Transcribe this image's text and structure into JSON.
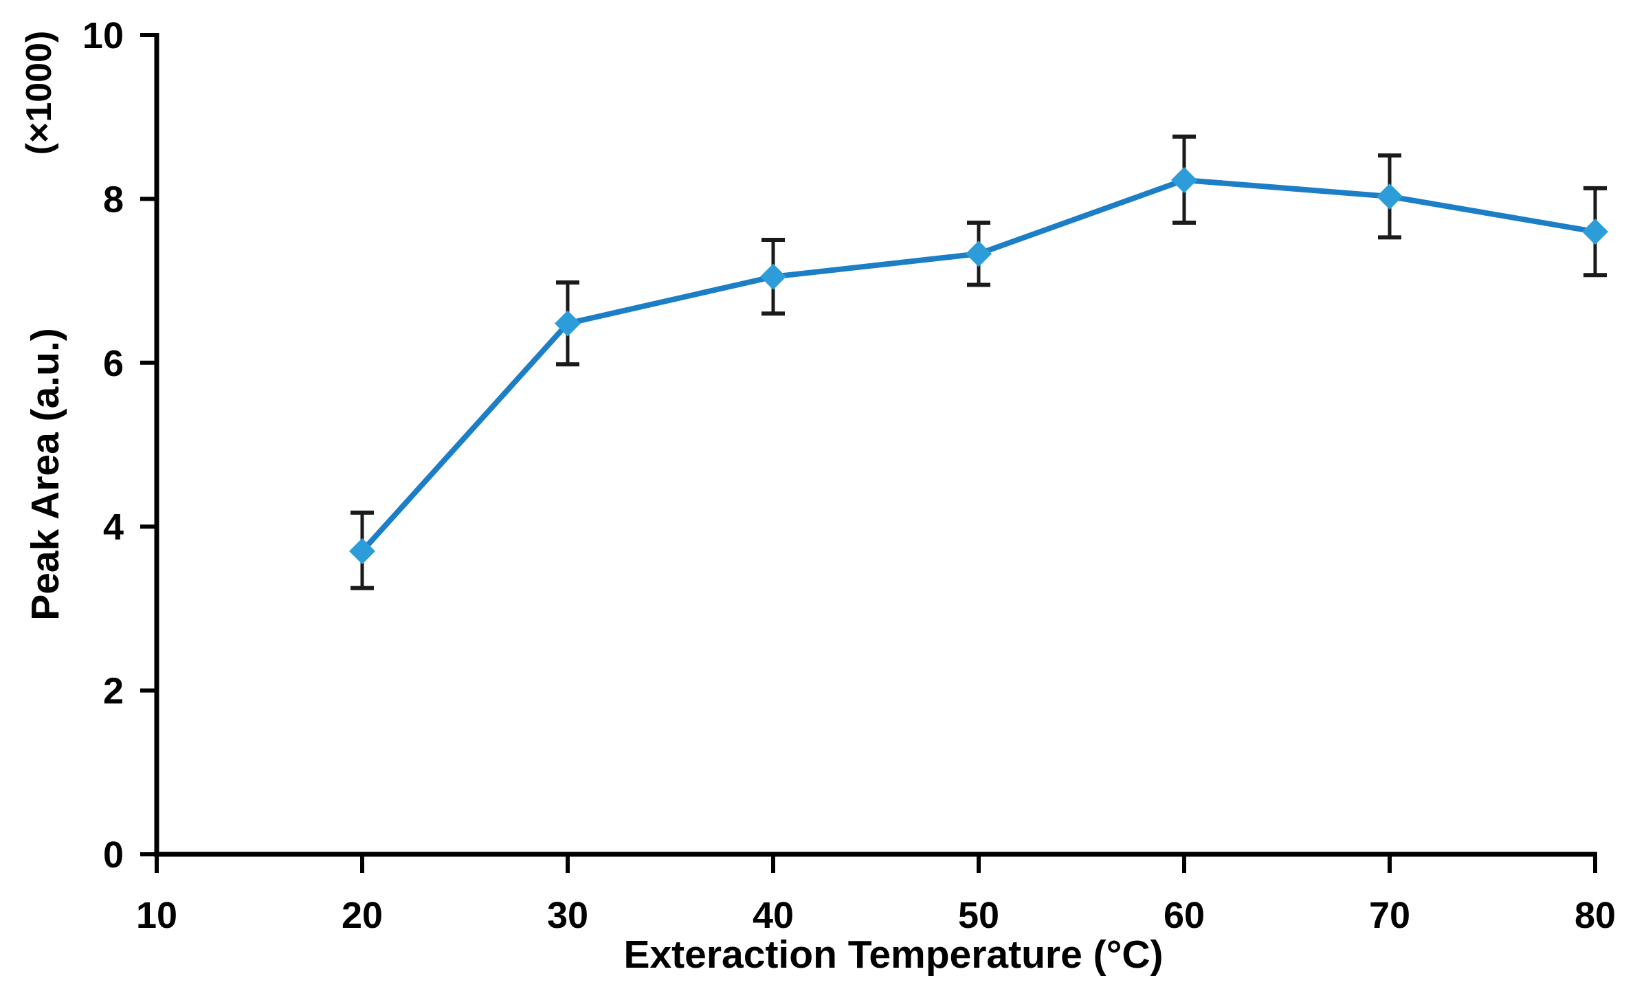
{
  "chart_data": {
    "type": "line",
    "title": "",
    "xlabel": "Exteraction Temperature (°C)",
    "ylabel": "Peak Area (a.u.)",
    "ylabel_multiplier": "(×1000)",
    "x": [
      20,
      30,
      40,
      50,
      60,
      70,
      80
    ],
    "series": [
      {
        "name": "Peak Area",
        "values": [
          3.7,
          6.48,
          7.05,
          7.33,
          8.23,
          8.03,
          7.6
        ],
        "error_up": [
          0.47,
          0.5,
          0.45,
          0.38,
          0.53,
          0.5,
          0.53
        ],
        "error_down": [
          0.45,
          0.5,
          0.45,
          0.38,
          0.52,
          0.5,
          0.53
        ]
      }
    ],
    "x_ticks": [
      10,
      20,
      30,
      40,
      50,
      60,
      70,
      80
    ],
    "y_ticks": [
      0,
      2,
      4,
      6,
      8,
      10
    ],
    "xlim": [
      10,
      80
    ],
    "ylim": [
      0,
      10
    ],
    "grid": false,
    "legend_position": "none",
    "marker_shape": "diamond",
    "colors": {
      "line": "#1b7ec6",
      "marker": "#2d9dd9",
      "error_bar": "#1a1a1a",
      "axis": "#000000",
      "background": "#ffffff"
    }
  }
}
